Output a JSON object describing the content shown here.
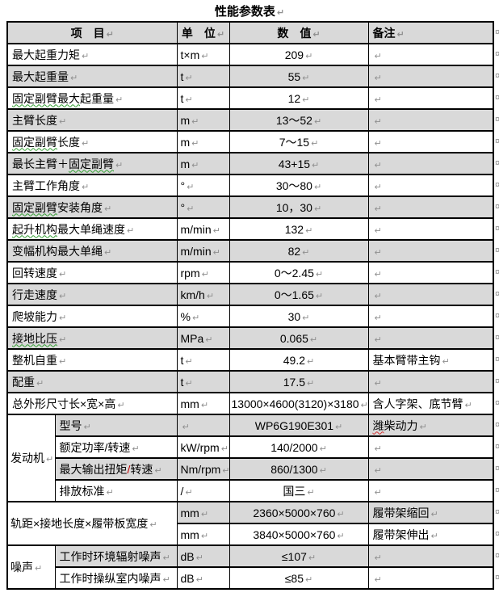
{
  "title": "性能参数表",
  "marks": {
    "pilcrow": "↵",
    "row_end": "¤"
  },
  "colors": {
    "shade_bg": "#d9d9d9",
    "border": "#000000",
    "mark": "#8f8f8f",
    "wavy_green": "#33a033",
    "wavy_red": "#d43030",
    "red_slash": "#c00000"
  },
  "header": {
    "item": "项　目",
    "unit": "单　位",
    "value": "数　值",
    "remark": "备注"
  },
  "rows": [
    {
      "shade": false,
      "item": [
        {
          "t": "最大起重力矩"
        }
      ],
      "unit": "t×m",
      "value": "209",
      "remark": ""
    },
    {
      "shade": true,
      "item": [
        {
          "t": "最大起重量"
        }
      ],
      "unit": "t",
      "value": "55",
      "remark": ""
    },
    {
      "shade": false,
      "item": [
        {
          "t": "固定副臂最大",
          "w": "g"
        },
        {
          "t": "起重量"
        }
      ],
      "unit": "t",
      "value": "12",
      "remark": ""
    },
    {
      "shade": true,
      "item": [
        {
          "t": "主臂长度"
        }
      ],
      "unit": "m",
      "value": "13～52",
      "remark": ""
    },
    {
      "shade": false,
      "item": [
        {
          "t": "固定副臂",
          "w": "g"
        },
        {
          "t": "长度"
        }
      ],
      "unit": "m",
      "value": "7～15",
      "remark": ""
    },
    {
      "shade": true,
      "item": [
        {
          "t": "最长主臂＋"
        },
        {
          "t": "固定副臂",
          "w": "g"
        }
      ],
      "unit": "m",
      "value": "43+15",
      "remark": ""
    },
    {
      "shade": false,
      "item": [
        {
          "t": "主臂工作角度"
        }
      ],
      "unit": "°",
      "value": "30～80",
      "remark": ""
    },
    {
      "shade": true,
      "item": [
        {
          "t": "固定副臂",
          "w": "g"
        },
        {
          "t": "安装角度"
        }
      ],
      "unit": "°",
      "value": "10，30",
      "remark": ""
    },
    {
      "shade": false,
      "item": [
        {
          "t": "起升机构",
          "w": "g"
        },
        {
          "t": "最大单绳速度"
        }
      ],
      "unit": "m/min",
      "value": "132",
      "remark": ""
    },
    {
      "shade": true,
      "item": [
        {
          "t": "变幅机构最大单绳"
        }
      ],
      "unit": "m/min",
      "value": "82",
      "remark": ""
    },
    {
      "shade": false,
      "item": [
        {
          "t": "回转速度"
        }
      ],
      "unit": "rpm",
      "value": "0～2.45",
      "remark": ""
    },
    {
      "shade": true,
      "item": [
        {
          "t": "行走速度"
        }
      ],
      "unit": "km/h",
      "value": "0～1.65",
      "remark": ""
    },
    {
      "shade": false,
      "item": [
        {
          "t": "爬坡能力"
        }
      ],
      "unit": "%",
      "value": "30",
      "remark": ""
    },
    {
      "shade": true,
      "item": [
        {
          "t": "接地比压",
          "w": "g"
        }
      ],
      "unit": "MPa",
      "value": "0.065",
      "remark": ""
    },
    {
      "shade": false,
      "item": [
        {
          "t": "整机自重"
        }
      ],
      "unit": "t",
      "value": "49.2",
      "remark": "基本臂带主钩"
    },
    {
      "shade": true,
      "item": [
        {
          "t": "配重"
        }
      ],
      "unit": "t",
      "value": "17.5",
      "remark": ""
    },
    {
      "shade": false,
      "item": [
        {
          "t": "总外形尺寸长×宽×高"
        }
      ],
      "unit": "mm",
      "value": "13000×4600(3120)×3180",
      "remark": "含人字架、底节臂"
    },
    {
      "shade": true,
      "group": {
        "label": "发动机",
        "span": 4
      },
      "item": [
        {
          "t": "型号"
        }
      ],
      "unit": "",
      "value": "WP6G190E301",
      "remark_parts": [
        {
          "t": "潍",
          "w": "r"
        },
        {
          "t": "柴动力"
        }
      ]
    },
    {
      "shade": false,
      "sub": true,
      "item": [
        {
          "t": "额定功率/转速"
        }
      ],
      "unit": "kW/rpm",
      "value": "140/2000",
      "remark": ""
    },
    {
      "shade": true,
      "sub": true,
      "item": [
        {
          "t": "最大输出扭矩"
        },
        {
          "t": "/",
          "c": "red"
        },
        {
          "t": "转速"
        }
      ],
      "unit": "Nm/rpm",
      "value": "860/1300",
      "remark": ""
    },
    {
      "shade": false,
      "sub": true,
      "item": [
        {
          "t": "排放标准"
        }
      ],
      "unit": "/",
      "value": "国三",
      "remark": ""
    },
    {
      "shade": true,
      "wide_group": {
        "label": "轨距×接地长度×履带板宽度",
        "span": 2
      },
      "unit": "mm",
      "value": "2360×5000×760",
      "remark": "履带架缩回"
    },
    {
      "shade": false,
      "wide_sub": true,
      "unit": "mm",
      "value": "3840×5000×760",
      "remark": "履带架伸出"
    },
    {
      "shade": true,
      "group": {
        "label": "噪声",
        "span": 2
      },
      "item": [
        {
          "t": "工作时环境辐射噪声"
        }
      ],
      "unit": "dB",
      "value": "≤107",
      "remark": ""
    },
    {
      "shade": false,
      "sub": true,
      "item": [
        {
          "t": "工作时操纵室内噪声"
        }
      ],
      "unit": "dB",
      "value": "≤85",
      "remark": ""
    }
  ]
}
